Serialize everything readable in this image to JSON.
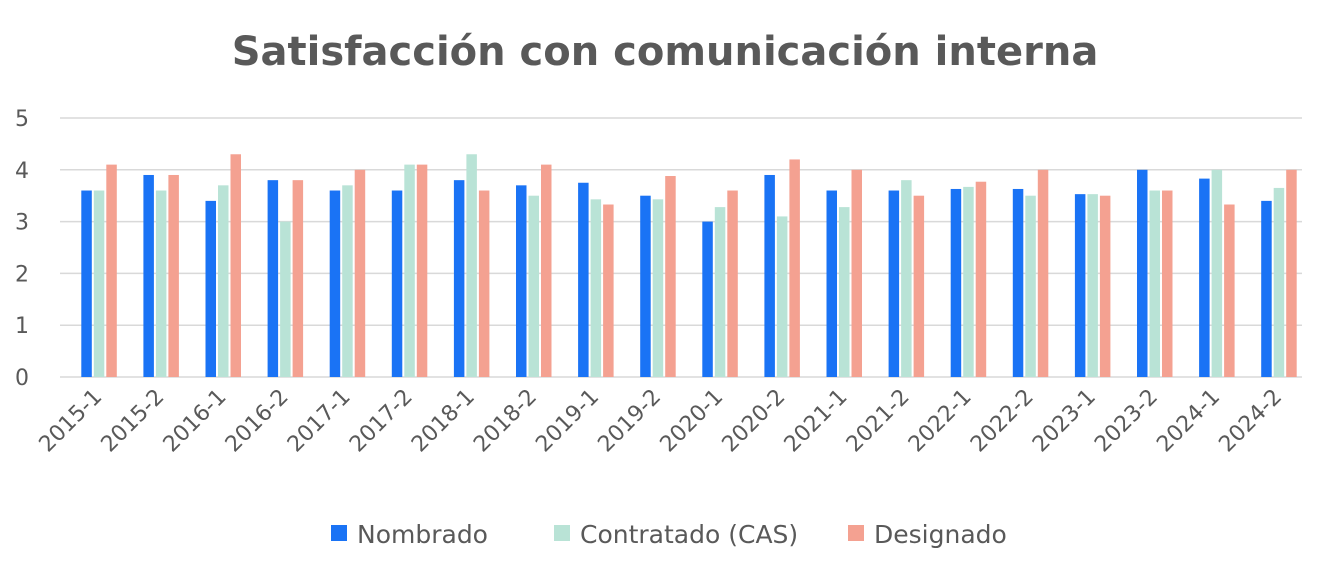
{
  "chart_data": {
    "type": "bar",
    "title": "Satisfacción con comunicación interna",
    "xlabel": "",
    "ylabel": "",
    "ylim": [
      0,
      5
    ],
    "yticks": [
      "0",
      "1",
      "2",
      "3",
      "4",
      "5"
    ],
    "grid": true,
    "legend_position": "bottom",
    "categories": [
      "2015-1",
      "2015-2",
      "2016-1",
      "2016-2",
      "2017-1",
      "2017-2",
      "2018-1",
      "2018-2",
      "2019-1",
      "2019-2",
      "2020-1",
      "2020-2",
      "2021-1",
      "2021-2",
      "2022-1",
      "2022-2",
      "2023-1",
      "2023-2",
      "2024-1",
      "2024-2"
    ],
    "series": [
      {
        "name": "Nombrado",
        "color": "#1a73f5",
        "values": [
          3.6,
          3.9,
          3.4,
          3.8,
          3.6,
          3.6,
          3.8,
          3.7,
          3.75,
          3.5,
          3.0,
          3.9,
          3.6,
          3.6,
          3.63,
          3.63,
          3.53,
          4.0,
          3.83,
          3.4
        ]
      },
      {
        "name": "Contratado (CAS)",
        "color": "#b9e3d6",
        "values": [
          3.6,
          3.6,
          3.7,
          3.0,
          3.7,
          4.1,
          4.3,
          3.5,
          3.43,
          3.43,
          3.28,
          3.1,
          3.28,
          3.8,
          3.67,
          3.5,
          3.53,
          3.6,
          4.0,
          3.65
        ]
      },
      {
        "name": "Designado",
        "color": "#f4a191",
        "values": [
          4.1,
          3.9,
          4.3,
          3.8,
          4.0,
          4.1,
          3.6,
          4.1,
          3.33,
          3.88,
          3.6,
          4.2,
          4.0,
          3.5,
          3.77,
          4.0,
          3.5,
          3.6,
          3.33,
          4.0
        ]
      }
    ]
  }
}
